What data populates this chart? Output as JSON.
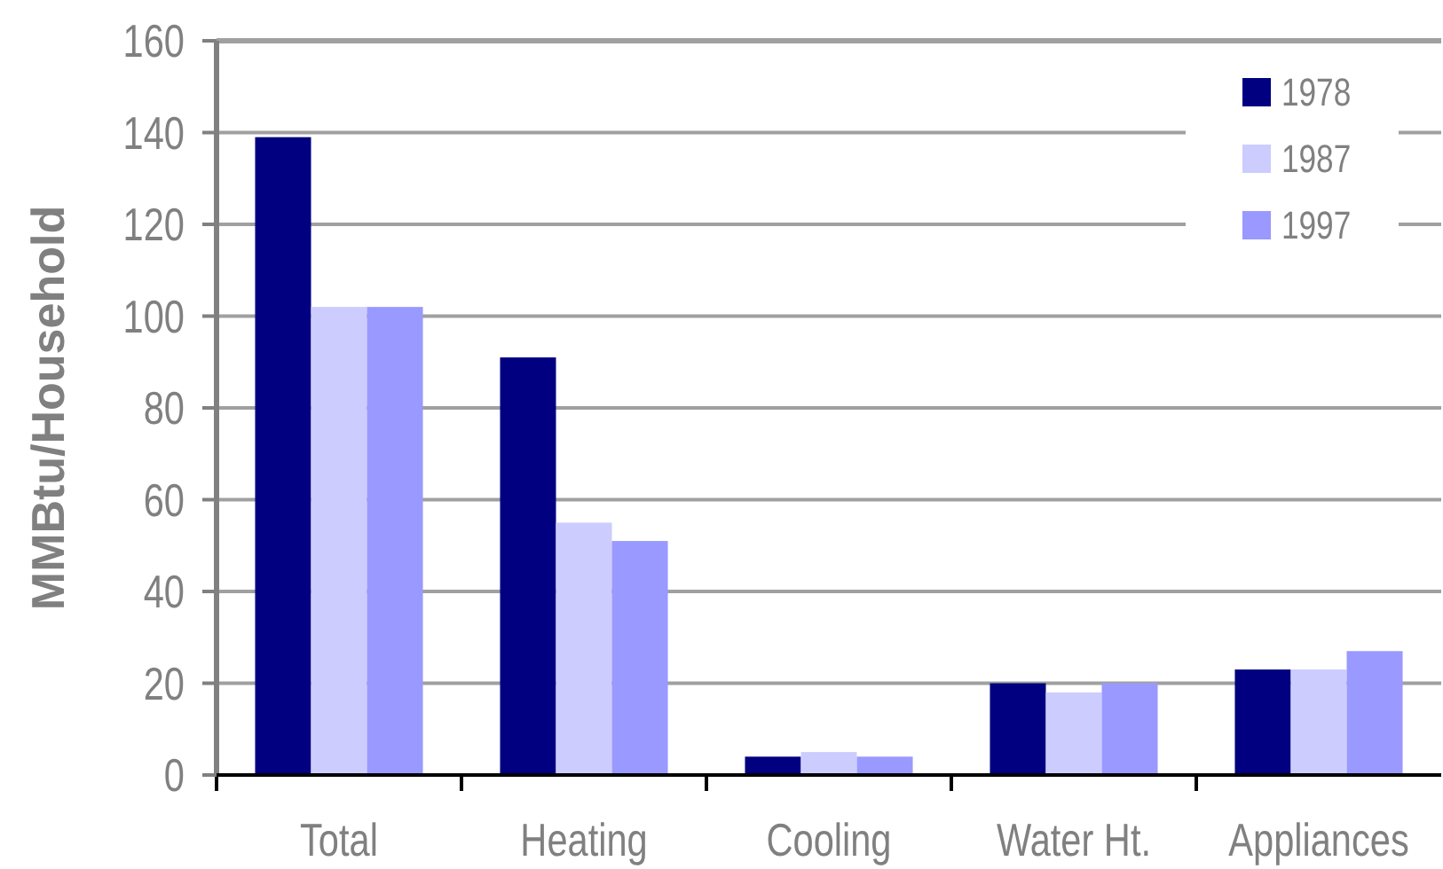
{
  "chart_data": {
    "type": "bar",
    "ylabel": "MMBtu/Household",
    "categories": [
      "Total",
      "Heating",
      "Cooling",
      "Water Ht.",
      "Appliances"
    ],
    "series": [
      {
        "name": "1978",
        "color": "#000080",
        "values": [
          139,
          91,
          4,
          20,
          23
        ]
      },
      {
        "name": "1987",
        "color": "#ccccff",
        "values": [
          102,
          55,
          5,
          18,
          23
        ]
      },
      {
        "name": "1997",
        "color": "#9999ff",
        "values": [
          102,
          51,
          4,
          20,
          27
        ]
      }
    ],
    "ylim": [
      0,
      160
    ],
    "yticks": [
      0,
      20,
      40,
      60,
      80,
      100,
      120,
      140,
      160
    ],
    "grid": "y",
    "legend": "top right"
  }
}
